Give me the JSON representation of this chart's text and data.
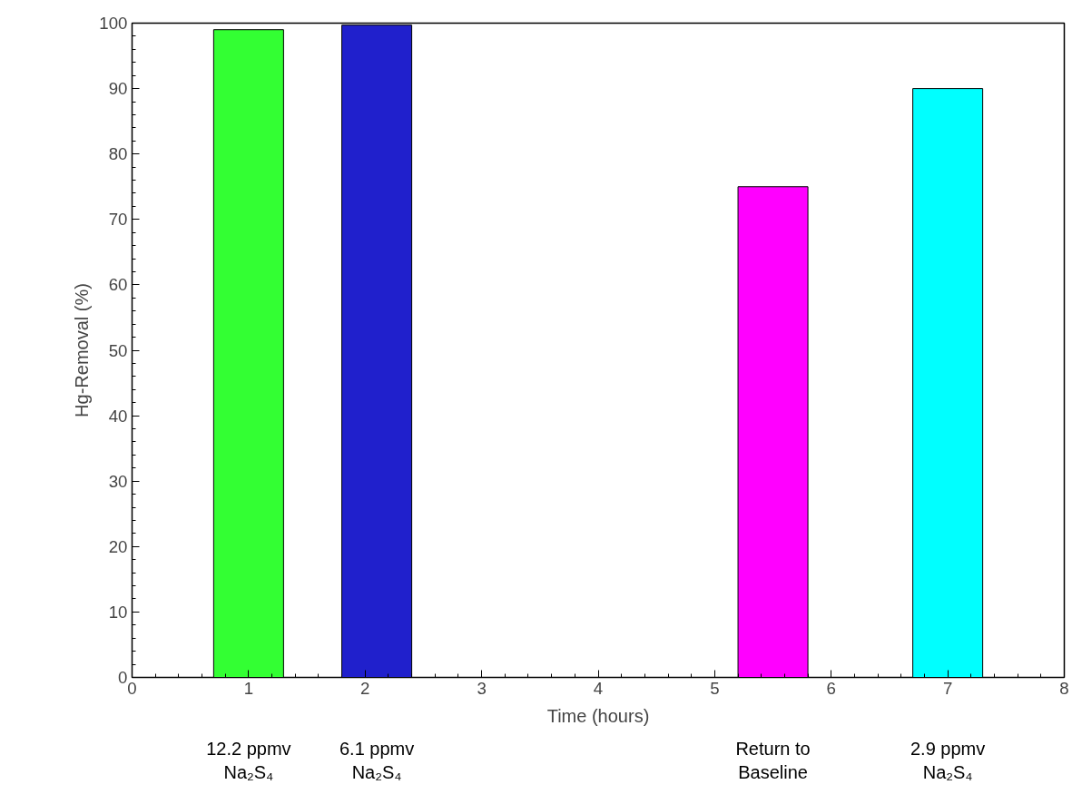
{
  "chart_data": {
    "type": "bar",
    "xlabel": "Time (hours)",
    "ylabel": "Hg-Removal (%)",
    "x": [
      1,
      2.1,
      5.5,
      7
    ],
    "values": [
      99,
      99.7,
      75,
      90
    ],
    "colors": [
      "#33ff33",
      "#2020cc",
      "#ff00ff",
      "#00ffff"
    ],
    "xlim": [
      0,
      8
    ],
    "xticks": [
      0,
      1,
      2,
      3,
      4,
      5,
      6,
      7,
      8
    ],
    "ylim": [
      0,
      100
    ],
    "yticks": [
      0,
      10,
      20,
      30,
      40,
      50,
      60,
      70,
      80,
      90,
      100
    ],
    "grid": false,
    "annotations": [
      "12.2 ppmv\nNa₂S₄",
      "6.1 ppmv\nNa₂S₄",
      "Return to\nBaseline",
      "2.9 ppmv\nNa₂S₄"
    ]
  }
}
